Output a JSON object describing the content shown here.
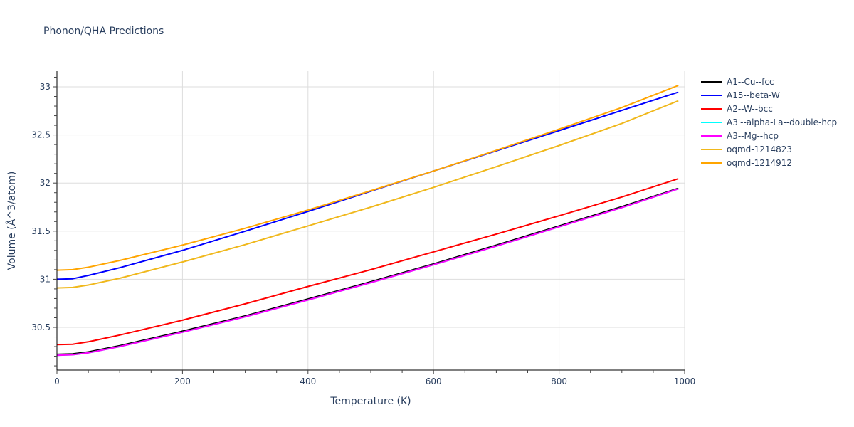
{
  "title": "Phonon/QHA Predictions",
  "chart_data": {
    "type": "line",
    "title": "Phonon/QHA Predictions",
    "xlabel": "Temperature (K)",
    "ylabel": "Volume (Å^3/atom)",
    "xlim": [
      0,
      1000
    ],
    "ylim": [
      30.07,
      33.17
    ],
    "xticks": [
      0,
      200,
      400,
      600,
      800,
      1000
    ],
    "yticks": [
      30.5,
      31,
      31.5,
      32,
      32.5,
      33
    ],
    "xtick_labels": [
      "0",
      "200",
      "400",
      "600",
      "800",
      "1000"
    ],
    "ytick_labels": [
      "30.5",
      "31",
      "31.5",
      "32",
      "32.5",
      "33"
    ],
    "grid": true,
    "legend_position": "right",
    "x": [
      0,
      25,
      50,
      100,
      200,
      300,
      400,
      500,
      600,
      700,
      800,
      900,
      990
    ],
    "series": [
      {
        "name": "A1--Cu--fcc",
        "color": "#000000",
        "values": [
          30.22,
          30.225,
          30.245,
          30.31,
          30.46,
          30.62,
          30.795,
          30.975,
          31.16,
          31.355,
          31.555,
          31.755,
          31.945
        ]
      },
      {
        "name": "A15--beta-W",
        "color": "#0000ff",
        "values": [
          31.0,
          31.005,
          31.04,
          31.12,
          31.3,
          31.5,
          31.705,
          31.915,
          32.125,
          32.335,
          32.545,
          32.755,
          32.945
        ]
      },
      {
        "name": "A2--W--bcc",
        "color": "#ff0000",
        "values": [
          30.32,
          30.325,
          30.35,
          30.42,
          30.575,
          30.745,
          30.925,
          31.1,
          31.285,
          31.47,
          31.66,
          31.855,
          32.045
        ]
      },
      {
        "name": "A3'--alpha-La--double-hcp",
        "color": "#00ffff",
        "values": [
          30.21,
          30.215,
          30.235,
          30.3,
          30.45,
          30.61,
          30.785,
          30.965,
          31.15,
          31.345,
          31.545,
          31.745,
          31.94
        ]
      },
      {
        "name": "A3--Mg--hcp",
        "color": "#ff00ff",
        "values": [
          30.21,
          30.215,
          30.235,
          30.3,
          30.45,
          30.61,
          30.785,
          30.965,
          31.15,
          31.345,
          31.545,
          31.745,
          31.94
        ]
      },
      {
        "name": "oqmd-1214823",
        "color": "#f0b81c",
        "values": [
          30.91,
          30.915,
          30.94,
          31.01,
          31.18,
          31.36,
          31.555,
          31.75,
          31.955,
          32.17,
          32.39,
          32.62,
          32.855
        ]
      },
      {
        "name": "oqmd-1214912",
        "color": "#ffa500",
        "values": [
          31.095,
          31.1,
          31.125,
          31.195,
          31.355,
          31.53,
          31.72,
          31.92,
          32.125,
          32.34,
          32.56,
          32.785,
          33.015
        ]
      }
    ]
  },
  "legend": {
    "items": [
      {
        "label": "A1--Cu--fcc",
        "color": "#000000"
      },
      {
        "label": "A15--beta-W",
        "color": "#0000ff"
      },
      {
        "label": "A2--W--bcc",
        "color": "#ff0000"
      },
      {
        "label": "A3'--alpha-La--double-hcp",
        "color": "#00ffff"
      },
      {
        "label": "A3--Mg--hcp",
        "color": "#ff00ff"
      },
      {
        "label": "oqmd-1214823",
        "color": "#f0b81c"
      },
      {
        "label": "oqmd-1214912",
        "color": "#ffa500"
      }
    ]
  }
}
